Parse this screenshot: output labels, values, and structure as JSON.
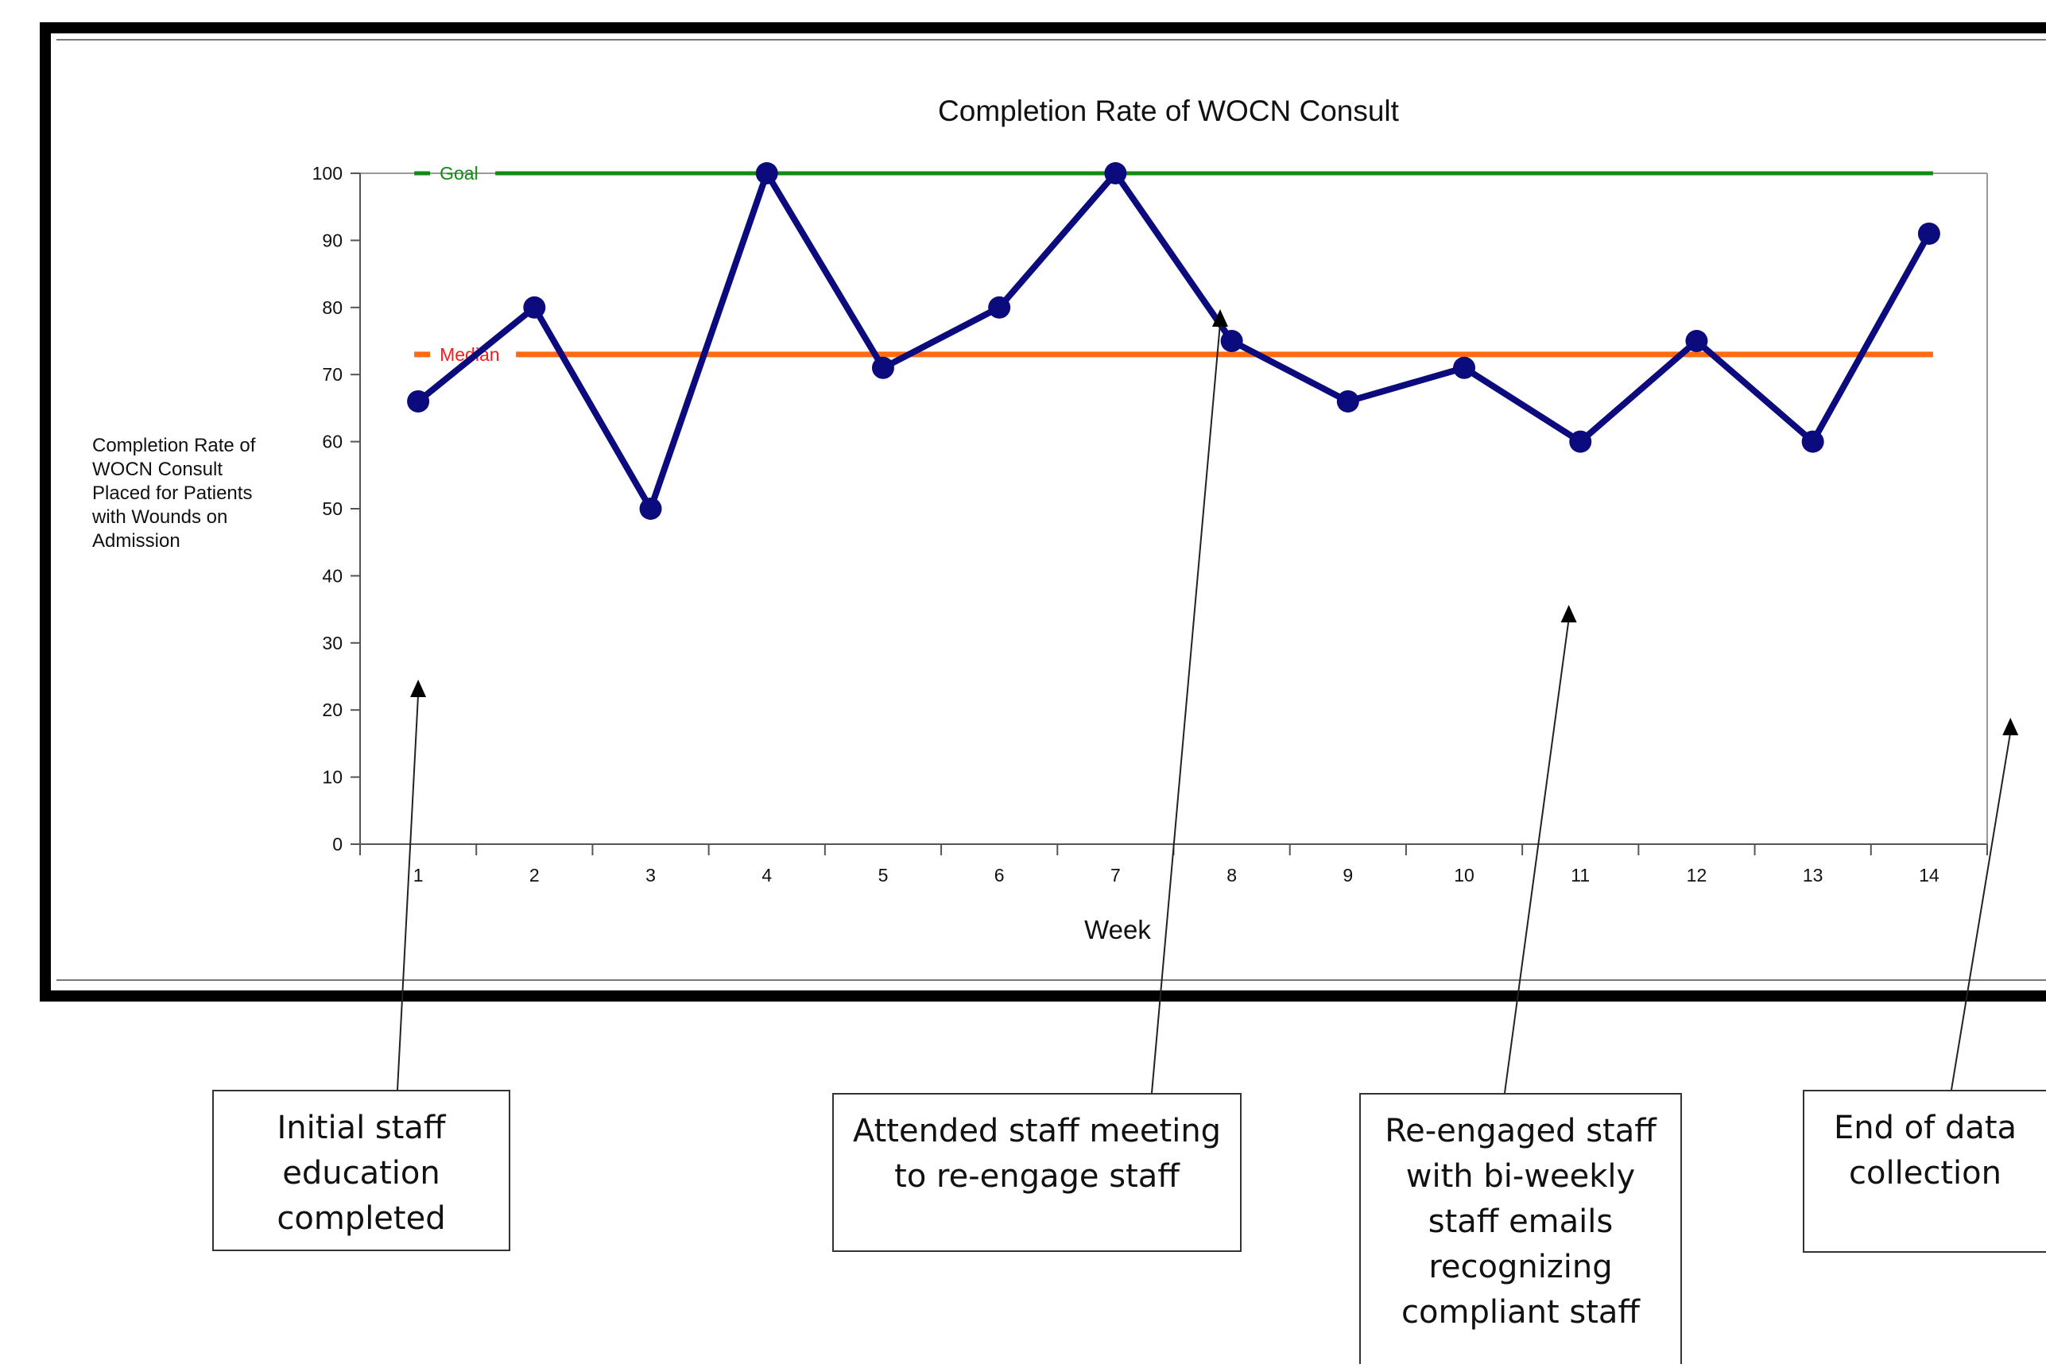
{
  "chart_data": {
    "type": "line",
    "title": "Completion Rate of WOCN Consult",
    "xlabel": "Week",
    "ylabel": "Completion Rate of\nWOCN Consult\nPlaced for Patients\nwith Wounds on\nAdmission",
    "categories": [
      "1",
      "2",
      "3",
      "4",
      "5",
      "6",
      "7",
      "8",
      "9",
      "10",
      "11",
      "12",
      "13",
      "14"
    ],
    "ylim": [
      0,
      100
    ],
    "yticks": [
      0,
      10,
      20,
      30,
      40,
      50,
      60,
      70,
      80,
      90,
      100
    ],
    "series": [
      {
        "values": [
          66,
          80,
          50,
          100,
          71,
          80,
          100,
          75,
          66,
          71,
          60,
          75,
          60,
          91
        ],
        "color": "#0b0b7e"
      }
    ],
    "reference_lines": [
      {
        "label": "Goal",
        "value": 100,
        "color": "#128a12",
        "label_color": "#128a12"
      },
      {
        "label": "Median",
        "value": 73,
        "color": "#ff6a13",
        "label_color": "#ff1a1a"
      }
    ],
    "grid": false,
    "legend": "none"
  },
  "annotations": [
    {
      "text": "Initial staff\neducation\ncompleted",
      "x_week": 0.5
    },
    {
      "text": "Attended staff meeting\nto re-engage staff",
      "x_week": 7.4
    },
    {
      "text": "Re-engaged staff\nwith bi-weekly\nstaff emails\nrecognizing\ncompliant staff",
      "x_week": 10.4
    },
    {
      "text": "End of data\ncollection",
      "x_week": 14.2
    }
  ]
}
